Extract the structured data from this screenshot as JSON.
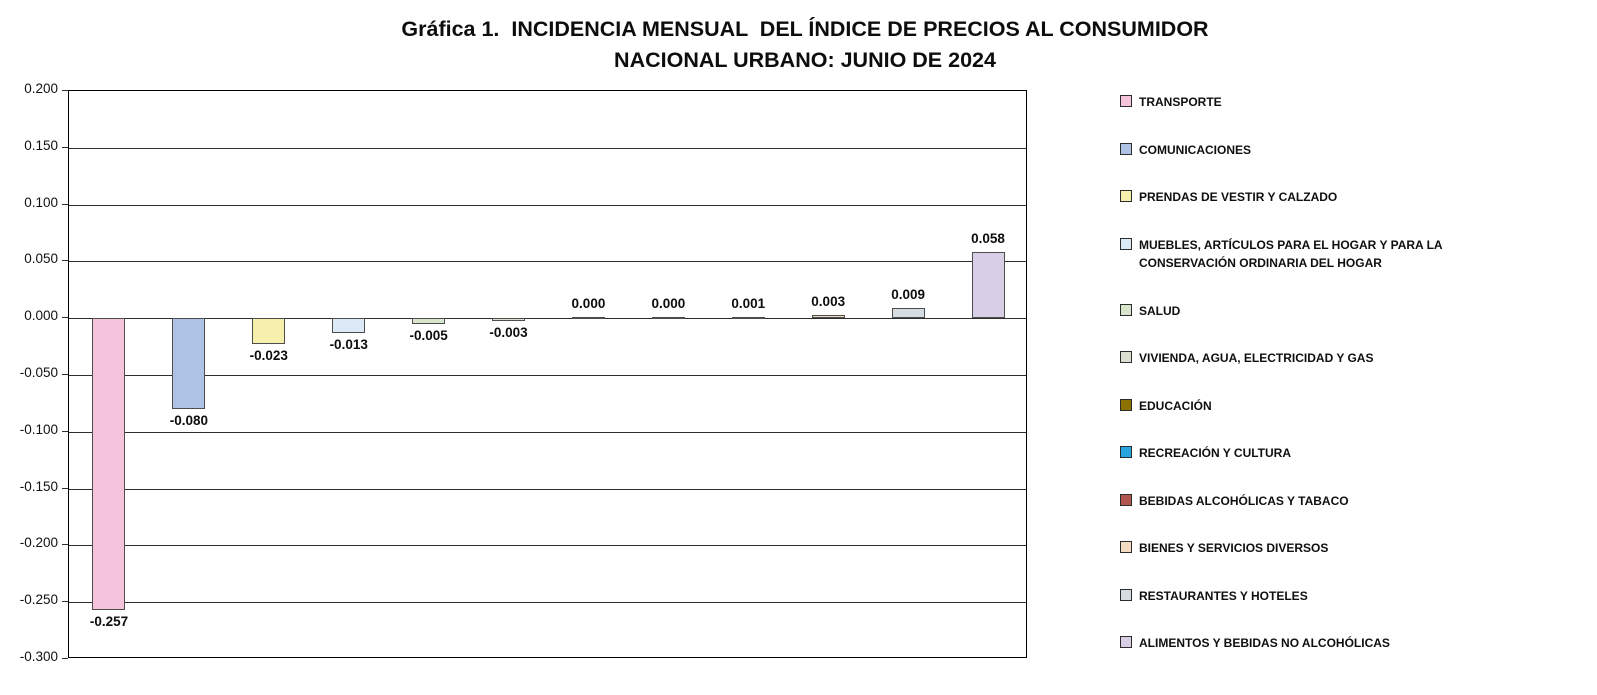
{
  "chart_data": {
    "type": "bar",
    "title_line1": "Gráfica 1.  INCIDENCIA MENSUAL  DEL ÍNDICE DE PRECIOS AL CONSUMIDOR",
    "title_line2": "NACIONAL URBANO: JUNIO DE 2024",
    "categories": [
      "TRANSPORTE",
      "COMUNICACIONES",
      "PRENDAS DE VESTIR Y CALZADO",
      "MUEBLES, ARTÍCULOS PARA EL HOGAR Y PARA LA CONSERVACIÓN ORDINARIA DEL HOGAR",
      "SALUD",
      "VIVIENDA, AGUA, ELECTRICIDAD Y GAS",
      "EDUCACIÓN",
      "RECREACIÓN Y CULTURA",
      "BEBIDAS ALCOHÓLICAS Y TABACO",
      "BIENES Y SERVICIOS DIVERSOS",
      "RESTAURANTES Y HOTELES",
      "ALIMENTOS Y BEBIDAS NO ALCOHÓLICAS"
    ],
    "values": [
      -0.257,
      -0.08,
      -0.023,
      -0.013,
      -0.005,
      -0.003,
      0.0,
      0.0,
      0.001,
      0.003,
      0.009,
      0.058
    ],
    "value_labels": [
      "-0.257",
      "-0.080",
      "-0.023",
      "-0.013",
      "-0.005",
      "-0.003",
      "0.000",
      "0.000",
      "0.001",
      "0.003",
      "0.009",
      "0.058"
    ],
    "bar_colors": [
      "#F5C3DC",
      "#AEC2E5",
      "#F7F0AC",
      "#DCE9F7",
      "#D8E7CC",
      "#DCDFD2",
      "#8A7100",
      "#27A5DC",
      "#B0564E",
      "#F4DCC2",
      "#D5DDE3",
      "#D8CEE6"
    ],
    "bar_border_color": "#4d4d4d",
    "ylim": [
      -0.3,
      0.2
    ],
    "ytick_step": 0.05,
    "ytick_labels": [
      "0.200",
      "0.150",
      "0.100",
      "0.050",
      "0.000",
      "-0.050",
      "-0.100",
      "-0.150",
      "-0.200",
      "-0.250",
      "-0.300"
    ],
    "grid": true,
    "legend_position": "right"
  }
}
